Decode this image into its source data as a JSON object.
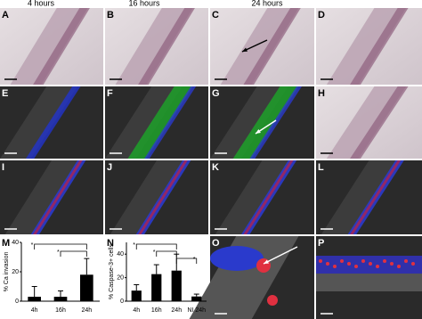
{
  "column_headers": [
    "4 hours",
    "16 hours",
    "24 hours"
  ],
  "panel_labels": [
    "A",
    "B",
    "C",
    "D",
    "E",
    "F",
    "G",
    "H",
    "I",
    "J",
    "K",
    "L",
    "M",
    "N",
    "O",
    "P"
  ],
  "chart_data": [
    {
      "type": "bar",
      "y_label": "% Ca invasion",
      "categories": [
        "4h",
        "16h",
        "24h"
      ],
      "values": [
        3,
        3,
        18
      ],
      "errors": [
        7,
        4,
        11
      ],
      "color": "#000000",
      "ylim": [
        0,
        40
      ],
      "yticks": [
        0,
        20,
        40
      ],
      "annotations": [
        "*",
        "*"
      ]
    },
    {
      "type": "bar",
      "y_label": "% Caspase-3+ cells",
      "categories": [
        "4h",
        "16h",
        "24h",
        "NI 24h"
      ],
      "values": [
        9,
        23,
        26,
        4
      ],
      "errors": [
        5,
        8,
        14,
        2
      ],
      "color": "#000000",
      "ylim": [
        0,
        50
      ],
      "yticks": [
        0,
        20,
        40
      ],
      "annotations": [
        "*",
        "*",
        "*"
      ]
    }
  ]
}
